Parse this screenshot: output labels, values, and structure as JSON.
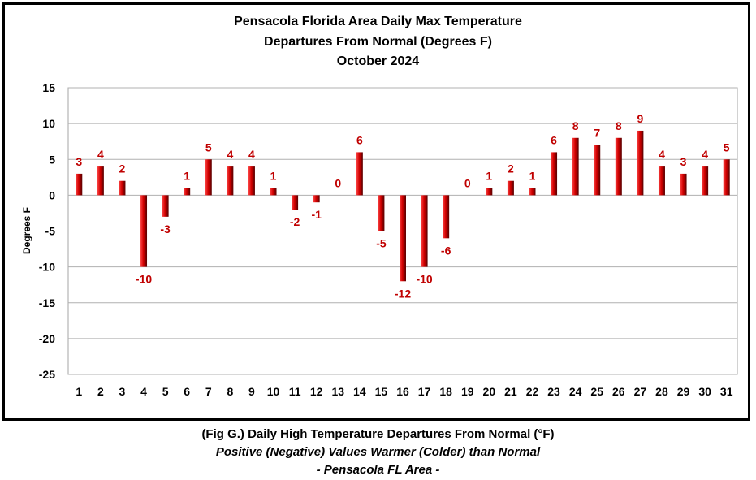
{
  "chart_data": {
    "type": "bar",
    "title_lines": [
      "Pensacola Florida Area Daily Max Temperature",
      "Departures From Normal (Degrees F)",
      "October 2024"
    ],
    "xlabel": "",
    "ylabel": "Degrees F",
    "ylim": [
      -25,
      15
    ],
    "yticks": [
      15,
      10,
      5,
      0,
      -5,
      -10,
      -15,
      -20,
      -25
    ],
    "grid": true,
    "legend": "none",
    "bar_color": "#c00000",
    "label_color": "#c00000",
    "categories": [
      "1",
      "2",
      "3",
      "4",
      "5",
      "6",
      "7",
      "8",
      "9",
      "10",
      "11",
      "12",
      "13",
      "14",
      "15",
      "16",
      "17",
      "18",
      "19",
      "20",
      "21",
      "22",
      "23",
      "24",
      "25",
      "26",
      "27",
      "28",
      "29",
      "30",
      "31"
    ],
    "series": [
      {
        "values": [
          3,
          4,
          2,
          -10,
          -3,
          1,
          5,
          4,
          4,
          1,
          -2,
          -1,
          0,
          6,
          -5,
          -12,
          -10,
          -6,
          0,
          1,
          2,
          1,
          6,
          8,
          7,
          8,
          9,
          4,
          3,
          4,
          5
        ]
      }
    ]
  },
  "caption": {
    "line1": "(Fig G.) Daily High Temperature Departures From Normal (°F)",
    "line2": "Positive (Negative) Values Warmer (Colder) than Normal",
    "line3": "- Pensacola FL Area -"
  }
}
